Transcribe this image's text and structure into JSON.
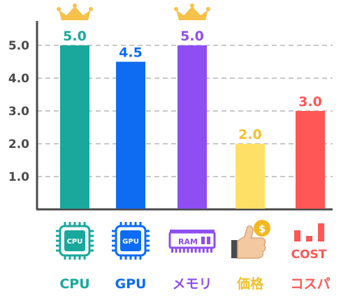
{
  "chart_data": {
    "type": "bar",
    "categories": [
      "CPU",
      "GPU",
      "メモリ",
      "価格",
      "コスパ"
    ],
    "values": [
      5.0,
      4.5,
      5.0,
      2.0,
      3.0
    ],
    "value_labels": [
      "5.0",
      "4.5",
      "5.0",
      "2.0",
      "3.0"
    ],
    "colors": [
      "#1aa89c",
      "#0d6cf2",
      "#8e4ef2",
      "#ffe066",
      "#ff5656"
    ],
    "label_colors": [
      "#1aa89c",
      "#0d6cf2",
      "#8e4ef2",
      "#f2c12e",
      "#ff5656"
    ],
    "yticks": [
      "1.0",
      "2.0",
      "3.0",
      "4.0",
      "5.0"
    ],
    "ylim": [
      0,
      5.8
    ],
    "grid": true,
    "crowned": [
      true,
      false,
      true,
      false,
      false
    ],
    "icons": [
      {
        "name": "cpu-chip-icon",
        "text": "CPU"
      },
      {
        "name": "gpu-chip-icon",
        "text": "GPU"
      },
      {
        "name": "ram-module-icon",
        "text": "RAM"
      },
      {
        "name": "thumbs-up-coin-icon",
        "text": "$"
      },
      {
        "name": "cost-icon",
        "text": "COST"
      }
    ],
    "crown_color": "#f7c24a"
  }
}
